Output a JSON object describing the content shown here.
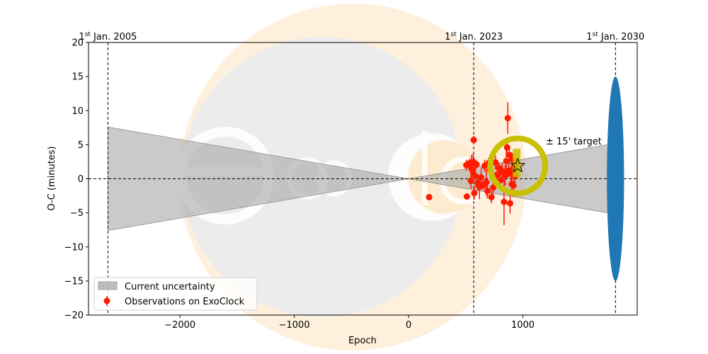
{
  "chart_data": {
    "type": "scatter",
    "xlabel": "Epoch",
    "ylabel": "O-C (minutes)",
    "xlim": [
      -2800,
      2000
    ],
    "ylim": [
      -20,
      20
    ],
    "x_ticks": [
      -2000,
      -1000,
      0,
      1000
    ],
    "x_tick_labels": [
      "−2000",
      "−1000",
      "0",
      "1000"
    ],
    "y_ticks": [
      -20,
      -15,
      -10,
      -5,
      0,
      5,
      10,
      15,
      20
    ],
    "y_tick_labels": [
      "−20",
      "−15",
      "−10",
      "−5",
      "0",
      "5",
      "10",
      "15",
      "20"
    ],
    "grid": false,
    "legend_position": "lower-left",
    "zero_line": 0,
    "date_markers": [
      {
        "epoch": -2630,
        "label_sup": "st",
        "label_pre": "1",
        "label_post": " Jan. 2005"
      },
      {
        "epoch": 570,
        "label_sup": "st",
        "label_pre": "1",
        "label_post": " Jan. 2023"
      },
      {
        "epoch": 1810,
        "label_sup": "st",
        "label_pre": "1",
        "label_post": " Jan. 2030"
      }
    ],
    "uncertainty": {
      "name": "Current uncertainty",
      "color": "#a6a6a6",
      "left": {
        "epoch": -2630,
        "half_width": 7.6
      },
      "pivot": {
        "epoch": 0,
        "value": 0
      },
      "right": {
        "epoch": 1810,
        "half_width": 5.2
      }
    },
    "observations": {
      "name": "Observations on ExoClock",
      "color": "#ff1a00",
      "points": [
        {
          "x": 180,
          "y": -2.7,
          "err": 0.4
        },
        {
          "x": 505,
          "y": 2.0,
          "err": 0.8
        },
        {
          "x": 510,
          "y": -2.6,
          "err": 0.4
        },
        {
          "x": 535,
          "y": 2.3,
          "err": 0.7
        },
        {
          "x": 545,
          "y": -0.3,
          "err": 1.2
        },
        {
          "x": 550,
          "y": 1.5,
          "err": 2.0
        },
        {
          "x": 560,
          "y": 1.2,
          "err": 1.0
        },
        {
          "x": 565,
          "y": 2.5,
          "err": 1.2
        },
        {
          "x": 570,
          "y": 5.7,
          "err": 0.6
        },
        {
          "x": 575,
          "y": -2.1,
          "err": 1.0
        },
        {
          "x": 585,
          "y": 0.4,
          "err": 1.6
        },
        {
          "x": 595,
          "y": 2.1,
          "err": 0.6
        },
        {
          "x": 605,
          "y": -0.6,
          "err": 1.1
        },
        {
          "x": 620,
          "y": -1.2,
          "err": 1.8
        },
        {
          "x": 635,
          "y": 0.2,
          "err": 1.4
        },
        {
          "x": 650,
          "y": -1.0,
          "err": 0.7
        },
        {
          "x": 665,
          "y": 1.9,
          "err": 0.9
        },
        {
          "x": 680,
          "y": -0.5,
          "err": 2.0
        },
        {
          "x": 690,
          "y": -1.8,
          "err": 1.1
        },
        {
          "x": 700,
          "y": 2.3,
          "err": 0.8
        },
        {
          "x": 715,
          "y": 1.3,
          "err": 1.2
        },
        {
          "x": 725,
          "y": -2.7,
          "err": 0.9
        },
        {
          "x": 740,
          "y": -1.3,
          "err": 1.2
        },
        {
          "x": 760,
          "y": 2.4,
          "err": 1.0
        },
        {
          "x": 775,
          "y": 0.6,
          "err": 1.1
        },
        {
          "x": 790,
          "y": 1.6,
          "err": 0.8
        },
        {
          "x": 805,
          "y": -0.2,
          "err": 1.0
        },
        {
          "x": 820,
          "y": 1.1,
          "err": 1.2
        },
        {
          "x": 835,
          "y": -3.4,
          "err": 3.4
        },
        {
          "x": 845,
          "y": 0.5,
          "err": 1.5
        },
        {
          "x": 855,
          "y": 2.6,
          "err": 1.8
        },
        {
          "x": 862,
          "y": 4.6,
          "err": 1.4
        },
        {
          "x": 868,
          "y": 8.9,
          "err": 2.3
        },
        {
          "x": 875,
          "y": 1.2,
          "err": 1.0
        },
        {
          "x": 882,
          "y": 3.5,
          "err": 1.4
        },
        {
          "x": 888,
          "y": -3.6,
          "err": 1.5
        },
        {
          "x": 895,
          "y": 0.8,
          "err": 1.2
        },
        {
          "x": 902,
          "y": -0.8,
          "err": 1.6
        },
        {
          "x": 910,
          "y": 2.8,
          "err": 1.0
        },
        {
          "x": 918,
          "y": -1.0,
          "err": 1.6
        },
        {
          "x": 925,
          "y": 1.5,
          "err": 1.1
        },
        {
          "x": 932,
          "y": 0.4,
          "err": 1.4
        },
        {
          "x": 940,
          "y": 2.0,
          "err": 1.0
        }
      ]
    },
    "target": {
      "label": "± 15' target",
      "marker": "star",
      "epoch": 955,
      "value": 1.9,
      "ring_color": "#c8c000",
      "ring_radius_epoch": 240
    },
    "future_ellipse": {
      "epoch": 1810,
      "value": 0,
      "half_width_epoch": 75,
      "half_height": 15,
      "color": "#1f77b4"
    }
  }
}
